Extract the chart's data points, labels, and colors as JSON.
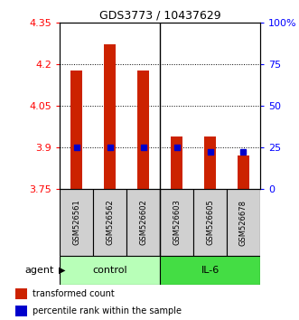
{
  "title": "GDS3773 / 10437629",
  "samples": [
    "GSM526561",
    "GSM526562",
    "GSM526602",
    "GSM526603",
    "GSM526605",
    "GSM526678"
  ],
  "red_values": [
    4.175,
    4.27,
    4.175,
    3.94,
    3.94,
    3.87
  ],
  "blue_pcts": [
    25,
    25,
    25,
    25,
    22,
    22
  ],
  "ylim_left": [
    3.75,
    4.35
  ],
  "ylim_right": [
    0,
    100
  ],
  "yticks_left": [
    3.75,
    3.9,
    4.05,
    4.2,
    4.35
  ],
  "yticks_right": [
    0,
    25,
    50,
    75,
    100
  ],
  "ytick_labels_left": [
    "3.75",
    "3.9",
    "4.05",
    "4.2",
    "4.35"
  ],
  "ytick_labels_right": [
    "0",
    "25",
    "50",
    "75",
    "100%"
  ],
  "control_color": "#b8ffb8",
  "il6_color": "#44dd44",
  "sample_box_color": "#d0d0d0",
  "bar_color": "#cc2200",
  "dot_color": "#0000cc",
  "background_color": "#ffffff",
  "agent_label": "agent",
  "control_label": "control",
  "il6_label": "IL-6",
  "legend_red": "transformed count",
  "legend_blue": "percentile rank within the sample",
  "n_control": 3,
  "n_il6": 3
}
